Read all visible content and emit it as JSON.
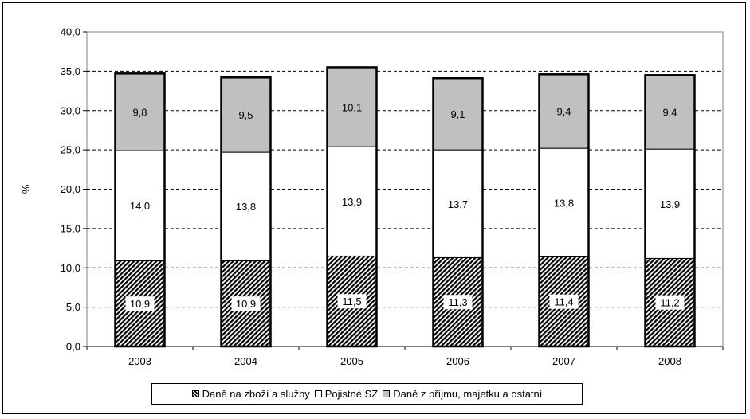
{
  "chart_data": {
    "type": "bar",
    "stacked": true,
    "categories": [
      "2003",
      "2004",
      "2005",
      "2006",
      "2007",
      "2008"
    ],
    "series": [
      {
        "name": "Daně na zboží a služby",
        "values": [
          10.9,
          10.9,
          11.5,
          11.3,
          11.4,
          11.2
        ],
        "labels": [
          "10,9",
          "10,9",
          "11,5",
          "11,3",
          "11,4",
          "11,2"
        ],
        "fill": "hatch"
      },
      {
        "name": "Pojistné SZ",
        "values": [
          14.0,
          13.8,
          13.9,
          13.7,
          13.8,
          13.9
        ],
        "labels": [
          "14,0",
          "13,8",
          "13,9",
          "13,7",
          "13,8",
          "13,9"
        ],
        "fill": "#ffffff"
      },
      {
        "name": "Daně z příjmu, majetku a ostatní",
        "values": [
          9.8,
          9.5,
          10.1,
          9.1,
          9.4,
          9.4
        ],
        "labels": [
          "9,8",
          "9,5",
          "10,1",
          "9,1",
          "9,4",
          "9,4"
        ],
        "fill": "#c0c0c0"
      }
    ],
    "ylabel": "%",
    "ylim": [
      0,
      40
    ],
    "yticks": [
      "0,0",
      "5,0",
      "10,0",
      "15,0",
      "20,0",
      "25,0",
      "30,0",
      "35,0",
      "40,0"
    ],
    "grid": "dashed horizontal",
    "legend_position": "bottom"
  }
}
